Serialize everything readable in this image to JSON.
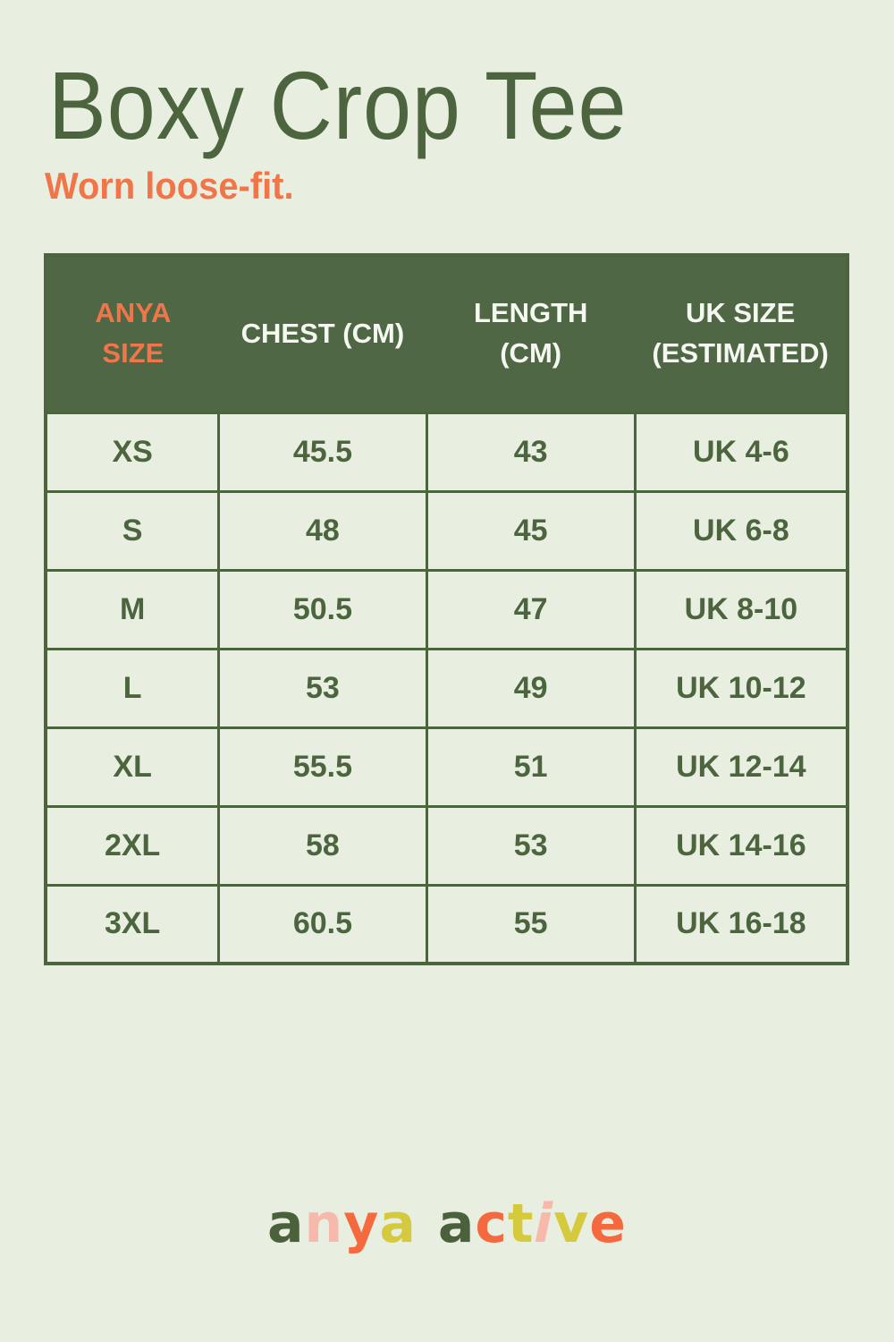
{
  "header": {
    "title": "Boxy Crop Tee",
    "subtitle": "Worn loose-fit."
  },
  "size_chart": {
    "columns": [
      "ANYA SIZE",
      "CHEST (CM)",
      "LENGTH (CM)",
      "UK SIZE (ESTIMATED)"
    ],
    "rows": [
      {
        "size": "XS",
        "chest_cm": "45.5",
        "length_cm": "43",
        "uk_size": "UK 4-6"
      },
      {
        "size": "S",
        "chest_cm": "48",
        "length_cm": "45",
        "uk_size": "UK 6-8"
      },
      {
        "size": "M",
        "chest_cm": "50.5",
        "length_cm": "47",
        "uk_size": "UK 8-10"
      },
      {
        "size": "L",
        "chest_cm": "53",
        "length_cm": "49",
        "uk_size": "UK 10-12"
      },
      {
        "size": "XL",
        "chest_cm": "55.5",
        "length_cm": "51",
        "uk_size": "UK 12-14"
      },
      {
        "size": "2XL",
        "chest_cm": "58",
        "length_cm": "53",
        "uk_size": "UK 14-16"
      },
      {
        "size": "3XL",
        "chest_cm": "60.5",
        "length_cm": "55",
        "uk_size": "UK 16-18"
      }
    ]
  },
  "brand": {
    "name": "anya active",
    "letters": [
      {
        "char": "a",
        "color": "#4a613c"
      },
      {
        "char": "n",
        "color": "#f6b9ab"
      },
      {
        "char": "y",
        "color": "#f4693d"
      },
      {
        "char": "a",
        "color": "#d5c93e"
      },
      {
        "char": " ",
        "color": ""
      },
      {
        "char": "a",
        "color": "#4a613c"
      },
      {
        "char": "c",
        "color": "#f4693d"
      },
      {
        "char": "t",
        "color": "#d5c93e"
      },
      {
        "char": "i",
        "color": "#f6b9ab",
        "slanted": true
      },
      {
        "char": "v",
        "color": "#d5c93e"
      },
      {
        "char": "e",
        "color": "#f4693d"
      }
    ]
  },
  "colors": {
    "background": "#e9efe0",
    "green_dark": "#4c653f",
    "table_header_bg": "#4f6744",
    "table_header_text": "#f5f8f0",
    "accent_orange": "#f0764a"
  }
}
